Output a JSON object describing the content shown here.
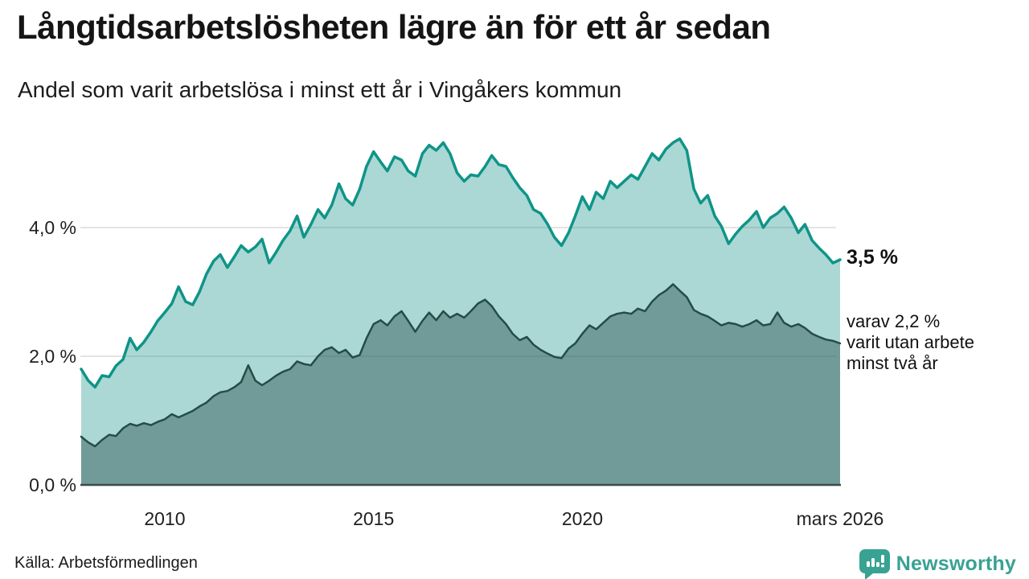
{
  "header": {
    "title": "Långtidsarbetslösheten lägre än för ett år sedan",
    "subtitle": "Andel som varit arbetslösa i minst ett år i Vingåkers kommun"
  },
  "chart_data": {
    "type": "area",
    "unit": "%",
    "title": "Långtidsarbetslösheten lägre än för ett år sedan",
    "subtitle": "Andel som varit arbetslösa i minst ett år i Vingåkers kommun",
    "x_axis": {
      "range": [
        2007.98,
        2026.17
      ],
      "ticks": [
        {
          "label": "2010",
          "year": 2010
        },
        {
          "label": "2015",
          "year": 2015
        },
        {
          "label": "2020",
          "year": 2020
        },
        {
          "label": "mars 2026",
          "year": 2026.17
        }
      ]
    },
    "y_axis": {
      "range": [
        0,
        5.6
      ],
      "gridlines": [
        2,
        4
      ],
      "ticks": [
        {
          "label": "0,0 %",
          "value": 0
        },
        {
          "label": "2,0 %",
          "value": 2
        },
        {
          "label": "4,0 %",
          "value": 4
        }
      ]
    },
    "series": [
      {
        "name": "Andel som varit arbetslösa i minst ett år",
        "stroke": "#0f9488",
        "stroke_width": 3.5,
        "fill": "rgba(27,150,138,0.37)",
        "end_value": 3.5,
        "points": [
          [
            2008.0,
            1.8
          ],
          [
            2008.17,
            1.62
          ],
          [
            2008.33,
            1.52
          ],
          [
            2008.5,
            1.7
          ],
          [
            2008.67,
            1.68
          ],
          [
            2008.83,
            1.85
          ],
          [
            2009.0,
            1.95
          ],
          [
            2009.17,
            2.28
          ],
          [
            2009.33,
            2.1
          ],
          [
            2009.5,
            2.22
          ],
          [
            2009.67,
            2.38
          ],
          [
            2009.83,
            2.55
          ],
          [
            2010.0,
            2.68
          ],
          [
            2010.17,
            2.82
          ],
          [
            2010.33,
            3.08
          ],
          [
            2010.5,
            2.85
          ],
          [
            2010.67,
            2.8
          ],
          [
            2010.83,
            3.0
          ],
          [
            2011.0,
            3.28
          ],
          [
            2011.17,
            3.48
          ],
          [
            2011.33,
            3.58
          ],
          [
            2011.5,
            3.38
          ],
          [
            2011.67,
            3.55
          ],
          [
            2011.83,
            3.72
          ],
          [
            2012.0,
            3.62
          ],
          [
            2012.17,
            3.7
          ],
          [
            2012.33,
            3.82
          ],
          [
            2012.5,
            3.45
          ],
          [
            2012.67,
            3.62
          ],
          [
            2012.83,
            3.8
          ],
          [
            2013.0,
            3.95
          ],
          [
            2013.17,
            4.18
          ],
          [
            2013.33,
            3.85
          ],
          [
            2013.5,
            4.05
          ],
          [
            2013.67,
            4.28
          ],
          [
            2013.83,
            4.15
          ],
          [
            2014.0,
            4.35
          ],
          [
            2014.17,
            4.68
          ],
          [
            2014.33,
            4.45
          ],
          [
            2014.5,
            4.35
          ],
          [
            2014.67,
            4.6
          ],
          [
            2014.83,
            4.95
          ],
          [
            2015.0,
            5.18
          ],
          [
            2015.17,
            5.02
          ],
          [
            2015.33,
            4.88
          ],
          [
            2015.5,
            5.1
          ],
          [
            2015.67,
            5.05
          ],
          [
            2015.83,
            4.88
          ],
          [
            2016.0,
            4.8
          ],
          [
            2016.17,
            5.15
          ],
          [
            2016.33,
            5.28
          ],
          [
            2016.5,
            5.2
          ],
          [
            2016.67,
            5.32
          ],
          [
            2016.83,
            5.15
          ],
          [
            2017.0,
            4.85
          ],
          [
            2017.17,
            4.72
          ],
          [
            2017.33,
            4.82
          ],
          [
            2017.5,
            4.8
          ],
          [
            2017.67,
            4.95
          ],
          [
            2017.83,
            5.12
          ],
          [
            2018.0,
            4.98
          ],
          [
            2018.17,
            4.95
          ],
          [
            2018.33,
            4.78
          ],
          [
            2018.5,
            4.62
          ],
          [
            2018.67,
            4.5
          ],
          [
            2018.83,
            4.28
          ],
          [
            2019.0,
            4.22
          ],
          [
            2019.17,
            4.05
          ],
          [
            2019.33,
            3.85
          ],
          [
            2019.5,
            3.72
          ],
          [
            2019.67,
            3.92
          ],
          [
            2019.83,
            4.18
          ],
          [
            2020.0,
            4.48
          ],
          [
            2020.17,
            4.28
          ],
          [
            2020.33,
            4.55
          ],
          [
            2020.5,
            4.45
          ],
          [
            2020.67,
            4.72
          ],
          [
            2020.83,
            4.62
          ],
          [
            2021.0,
            4.72
          ],
          [
            2021.17,
            4.82
          ],
          [
            2021.33,
            4.75
          ],
          [
            2021.5,
            4.95
          ],
          [
            2021.67,
            5.15
          ],
          [
            2021.83,
            5.05
          ],
          [
            2022.0,
            5.22
          ],
          [
            2022.17,
            5.32
          ],
          [
            2022.33,
            5.38
          ],
          [
            2022.5,
            5.2
          ],
          [
            2022.67,
            4.6
          ],
          [
            2022.83,
            4.38
          ],
          [
            2023.0,
            4.5
          ],
          [
            2023.17,
            4.18
          ],
          [
            2023.33,
            4.02
          ],
          [
            2023.5,
            3.75
          ],
          [
            2023.67,
            3.9
          ],
          [
            2023.83,
            4.02
          ],
          [
            2024.0,
            4.12
          ],
          [
            2024.17,
            4.25
          ],
          [
            2024.33,
            4.0
          ],
          [
            2024.5,
            4.15
          ],
          [
            2024.67,
            4.22
          ],
          [
            2024.83,
            4.32
          ],
          [
            2025.0,
            4.15
          ],
          [
            2025.17,
            3.92
          ],
          [
            2025.33,
            4.05
          ],
          [
            2025.5,
            3.8
          ],
          [
            2025.67,
            3.68
          ],
          [
            2025.83,
            3.58
          ],
          [
            2026.0,
            3.45
          ],
          [
            2026.17,
            3.5
          ]
        ]
      },
      {
        "name": "varav utan arbete minst två år",
        "stroke": "#264c48",
        "stroke_width": 2.5,
        "fill": "rgba(31,72,68,0.42)",
        "end_value": 2.2,
        "points": [
          [
            2008.0,
            0.75
          ],
          [
            2008.17,
            0.66
          ],
          [
            2008.33,
            0.6
          ],
          [
            2008.5,
            0.7
          ],
          [
            2008.67,
            0.78
          ],
          [
            2008.83,
            0.76
          ],
          [
            2009.0,
            0.88
          ],
          [
            2009.17,
            0.95
          ],
          [
            2009.33,
            0.92
          ],
          [
            2009.5,
            0.96
          ],
          [
            2009.67,
            0.93
          ],
          [
            2009.83,
            0.98
          ],
          [
            2010.0,
            1.02
          ],
          [
            2010.17,
            1.1
          ],
          [
            2010.33,
            1.05
          ],
          [
            2010.5,
            1.1
          ],
          [
            2010.67,
            1.15
          ],
          [
            2010.83,
            1.22
          ],
          [
            2011.0,
            1.28
          ],
          [
            2011.17,
            1.38
          ],
          [
            2011.33,
            1.44
          ],
          [
            2011.5,
            1.46
          ],
          [
            2011.67,
            1.52
          ],
          [
            2011.83,
            1.6
          ],
          [
            2012.0,
            1.86
          ],
          [
            2012.17,
            1.62
          ],
          [
            2012.33,
            1.55
          ],
          [
            2012.5,
            1.62
          ],
          [
            2012.67,
            1.7
          ],
          [
            2012.83,
            1.76
          ],
          [
            2013.0,
            1.8
          ],
          [
            2013.17,
            1.92
          ],
          [
            2013.33,
            1.88
          ],
          [
            2013.5,
            1.86
          ],
          [
            2013.67,
            2.0
          ],
          [
            2013.83,
            2.1
          ],
          [
            2014.0,
            2.14
          ],
          [
            2014.17,
            2.05
          ],
          [
            2014.33,
            2.1
          ],
          [
            2014.5,
            1.98
          ],
          [
            2014.67,
            2.02
          ],
          [
            2014.83,
            2.28
          ],
          [
            2015.0,
            2.5
          ],
          [
            2015.17,
            2.56
          ],
          [
            2015.33,
            2.48
          ],
          [
            2015.5,
            2.62
          ],
          [
            2015.67,
            2.7
          ],
          [
            2015.83,
            2.55
          ],
          [
            2016.0,
            2.38
          ],
          [
            2016.17,
            2.55
          ],
          [
            2016.33,
            2.68
          ],
          [
            2016.5,
            2.56
          ],
          [
            2016.67,
            2.7
          ],
          [
            2016.83,
            2.6
          ],
          [
            2017.0,
            2.66
          ],
          [
            2017.17,
            2.6
          ],
          [
            2017.33,
            2.7
          ],
          [
            2017.5,
            2.82
          ],
          [
            2017.67,
            2.88
          ],
          [
            2017.83,
            2.78
          ],
          [
            2018.0,
            2.62
          ],
          [
            2018.17,
            2.5
          ],
          [
            2018.33,
            2.35
          ],
          [
            2018.5,
            2.25
          ],
          [
            2018.67,
            2.3
          ],
          [
            2018.83,
            2.18
          ],
          [
            2019.0,
            2.1
          ],
          [
            2019.17,
            2.04
          ],
          [
            2019.33,
            1.99
          ],
          [
            2019.5,
            1.97
          ],
          [
            2019.67,
            2.12
          ],
          [
            2019.83,
            2.2
          ],
          [
            2020.0,
            2.35
          ],
          [
            2020.17,
            2.48
          ],
          [
            2020.33,
            2.42
          ],
          [
            2020.5,
            2.52
          ],
          [
            2020.67,
            2.62
          ],
          [
            2020.83,
            2.66
          ],
          [
            2021.0,
            2.68
          ],
          [
            2021.17,
            2.66
          ],
          [
            2021.33,
            2.74
          ],
          [
            2021.5,
            2.7
          ],
          [
            2021.67,
            2.85
          ],
          [
            2021.83,
            2.95
          ],
          [
            2022.0,
            3.02
          ],
          [
            2022.17,
            3.12
          ],
          [
            2022.33,
            3.02
          ],
          [
            2022.5,
            2.92
          ],
          [
            2022.67,
            2.72
          ],
          [
            2022.83,
            2.66
          ],
          [
            2023.0,
            2.62
          ],
          [
            2023.17,
            2.55
          ],
          [
            2023.33,
            2.48
          ],
          [
            2023.5,
            2.52
          ],
          [
            2023.67,
            2.5
          ],
          [
            2023.83,
            2.46
          ],
          [
            2024.0,
            2.5
          ],
          [
            2024.17,
            2.56
          ],
          [
            2024.33,
            2.48
          ],
          [
            2024.5,
            2.5
          ],
          [
            2024.67,
            2.68
          ],
          [
            2024.83,
            2.52
          ],
          [
            2025.0,
            2.46
          ],
          [
            2025.17,
            2.5
          ],
          [
            2025.33,
            2.44
          ],
          [
            2025.5,
            2.35
          ],
          [
            2025.67,
            2.3
          ],
          [
            2025.83,
            2.26
          ],
          [
            2026.0,
            2.24
          ],
          [
            2026.17,
            2.2
          ]
        ]
      }
    ],
    "annotations": [
      {
        "text": "3,5 %",
        "value": 3.5,
        "style": "bold"
      },
      {
        "text": "varav 2,2 %\nvarit utan arbete\nminst två år",
        "value": 2.2,
        "style": "plain"
      }
    ],
    "layout": {
      "grid": true,
      "legend": "none",
      "gridline_color": "#dcdcdc",
      "baseline_color": "#3d4b49"
    }
  },
  "footer": {
    "source": "Källa: Arbetsförmedlingen",
    "logo_text": "Newsworthy",
    "logo_color": "#38a293"
  }
}
